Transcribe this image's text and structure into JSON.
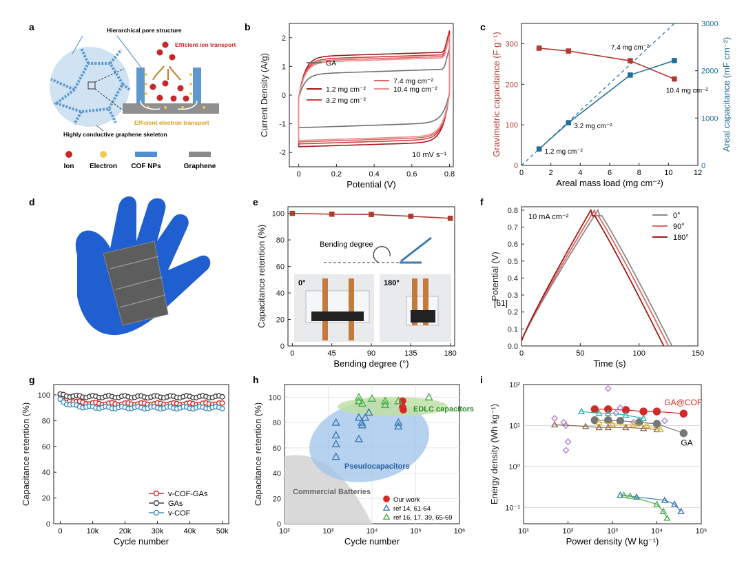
{
  "panels": {
    "a": {
      "letter": "a",
      "pore_label": "Hierarchical pore structure",
      "ion_transport_label": "Efficient ion transport",
      "electron_transport_label": "Efficient electron transport",
      "skeleton_label": "Highly conductive graphene skeleton",
      "legend": [
        {
          "label": "Ion",
          "color": "#c62828"
        },
        {
          "label": "Electron",
          "color": "#f2c94c"
        },
        {
          "label": "COF NPs",
          "color": "#4f8fcf"
        },
        {
          "label": "Graphene",
          "color": "#8a8a8a"
        }
      ]
    },
    "d": {
      "letter": "d"
    },
    "e": {
      "letter": "e",
      "bending_label": "Bending degree",
      "photo_left_label": "0°",
      "photo_right_label": "180°"
    },
    "f": {
      "letter": "f",
      "annotation": "10 mA cm⁻²",
      "side_label": "[61]"
    },
    "h": {
      "letter": "h",
      "region_batteries": "Commercial Batteries",
      "region_pseudo": "Pseudocapacitors",
      "region_edlc": "EDLC capacitors"
    },
    "i": {
      "letter": "i",
      "label_gacof": "GA@COF",
      "label_ga": "GA"
    }
  },
  "chart_data": [
    {
      "id": "b",
      "letter": "b",
      "type": "line",
      "xlabel": "Potential (V)",
      "ylabel": "Current Density (A/g)",
      "xlim": [
        -0.05,
        0.82
      ],
      "ylim": [
        -2.5,
        2.5
      ],
      "xticks": [
        0.0,
        0.2,
        0.4,
        0.6,
        0.8
      ],
      "yticks": [
        -2,
        -1,
        0,
        1,
        2
      ],
      "annotation": "10 mV s⁻¹",
      "series": [
        {
          "name": "GA",
          "color": "#707070",
          "upper": 0.82,
          "lower": -1.05,
          "slope": 0.55
        },
        {
          "name": "1.2 mg cm⁻²",
          "color": "#a01818",
          "upper": 1.42,
          "lower": -1.72,
          "slope": 0.5
        },
        {
          "name": "3.2 mg cm⁻²",
          "color": "#d63a3a",
          "upper": 1.33,
          "lower": -1.62,
          "slope": 0.52
        },
        {
          "name": "7.4 mg cm⁻²",
          "color": "#e06565",
          "upper": 1.27,
          "lower": -1.55,
          "slope": 0.52
        },
        {
          "name": "10.4 mg cm⁻²",
          "color": "#ea8f8f",
          "upper": 1.22,
          "lower": -1.5,
          "slope": 0.53
        }
      ]
    },
    {
      "id": "c",
      "letter": "c",
      "type": "line",
      "xlabel": "Areal mass load (mg cm⁻²)",
      "ylabel": "Gravimetric capacitance (F g⁻¹)",
      "ylabel_right": "Areal capacitance (mF cm⁻²)",
      "xlim": [
        0,
        12
      ],
      "ylim": [
        0,
        350
      ],
      "ylim_right": [
        0,
        3000
      ],
      "xticks": [
        0,
        2,
        4,
        6,
        8,
        10,
        12
      ],
      "yticks": [
        0,
        100,
        200,
        300
      ],
      "yticks_right": [
        0,
        1000,
        2000,
        3000
      ],
      "x": [
        1.2,
        3.2,
        7.4,
        10.4
      ],
      "gravimetric": [
        289,
        282,
        258,
        213
      ],
      "areal": [
        347,
        902,
        1909,
        2215
      ],
      "point_labels": [
        "1.2 mg cm⁻²",
        "3.2 mg cm⁻²",
        "7.4 mg cm⁻²",
        "10.4 mg cm⁻²"
      ],
      "colors": {
        "gravimetric": "#b03a2e",
        "areal": "#1f6f9a"
      }
    },
    {
      "id": "e",
      "letter": "e",
      "type": "line",
      "xlabel": "Bending degree (°)",
      "ylabel": "Capacitance retention (%)",
      "xlim": [
        -5,
        185
      ],
      "ylim": [
        0,
        105
      ],
      "xticks": [
        0,
        45,
        90,
        135,
        180
      ],
      "yticks": [
        0,
        20,
        40,
        60,
        80,
        100
      ],
      "x": [
        0,
        45,
        90,
        135,
        180
      ],
      "values": [
        100,
        99.4,
        99.2,
        97.8,
        96.3
      ],
      "color": "#b03a2e"
    },
    {
      "id": "f",
      "letter": "f",
      "type": "line",
      "xlabel": "Time (s)",
      "ylabel": "Potential (V)",
      "xlim": [
        0,
        150
      ],
      "ylim": [
        0,
        0.82
      ],
      "xticks": [
        0,
        50,
        100,
        150
      ],
      "yticks": [
        0.0,
        0.1,
        0.2,
        0.3,
        0.4,
        0.5,
        0.6,
        0.7,
        0.8
      ],
      "series": [
        {
          "name": "0°",
          "color": "#8a8a8a",
          "peak": 65,
          "end": 128
        },
        {
          "name": "90°",
          "color": "#e06565",
          "peak": 62,
          "end": 125
        },
        {
          "name": "180°",
          "color": "#a01818",
          "peak": 59,
          "end": 121
        }
      ]
    },
    {
      "id": "g",
      "letter": "g",
      "type": "scatter",
      "xlabel": "Cycle number",
      "ylabel": "Capacitance retention (%)",
      "xlim": [
        -2000,
        52000
      ],
      "ylim": [
        0,
        108
      ],
      "xticks": [
        0,
        10000,
        20000,
        30000,
        40000,
        50000
      ],
      "xticklabels": [
        "0",
        "10k",
        "20k",
        "30k",
        "40k",
        "50k"
      ],
      "yticks": [
        0,
        20,
        40,
        60,
        80,
        100
      ],
      "series": [
        {
          "name": "v-COF-GAs",
          "color": "#d62828",
          "start": 100,
          "plateau": 93
        },
        {
          "name": "GAs",
          "color": "#444444",
          "start": 100,
          "plateau": 98.5
        },
        {
          "name": "v-COF",
          "color": "#3b8fc2",
          "start": 96,
          "plateau": 90
        }
      ]
    },
    {
      "id": "h",
      "letter": "h",
      "type": "scatter",
      "xlabel": "Cycle number",
      "ylabel": "Capacitance retention (%)",
      "xscale": "log",
      "xlim": [
        100,
        1000000
      ],
      "ylim": [
        0,
        110
      ],
      "xticks": [
        100,
        1000,
        10000,
        100000,
        1000000
      ],
      "xticklabels": [
        "10²",
        "10³",
        "10⁴",
        "10⁵",
        "10⁶"
      ],
      "yticks": [
        0,
        20,
        40,
        60,
        80,
        100
      ],
      "series": [
        {
          "name": "Our work",
          "color": "#d62828",
          "marker": "circle",
          "points": [
            [
              50000,
              97
            ],
            [
              50000,
              92
            ],
            [
              52000,
              90
            ]
          ]
        },
        {
          "name": "ref 14, 61-64",
          "color": "#3b78b5",
          "marker": "triangle",
          "points": [
            [
              1500,
              80
            ],
            [
              1500,
              70
            ],
            [
              1500,
              63
            ],
            [
              1500,
              53
            ],
            [
              5000,
              84
            ],
            [
              5000,
              67
            ],
            [
              5800,
              80
            ],
            [
              6000,
              78
            ],
            [
              7000,
              84
            ],
            [
              8500,
              88
            ],
            [
              40000,
              77
            ],
            [
              40000,
              80
            ]
          ]
        },
        {
          "name": "ref 16, 17, 39, 65-69",
          "color": "#4cae4c",
          "marker": "triangle",
          "points": [
            [
              5000,
              100
            ],
            [
              5000,
              97
            ],
            [
              10000,
              99
            ],
            [
              20000,
              97
            ],
            [
              20000,
              94
            ],
            [
              40000,
              97
            ],
            [
              200000,
              100
            ],
            [
              6000,
              95
            ]
          ]
        }
      ]
    },
    {
      "id": "i",
      "letter": "i",
      "type": "scatter",
      "xlabel": "Power density (W kg⁻¹)",
      "ylabel": "Energy density (Wh kg⁻¹)",
      "xscale": "log",
      "yscale": "log",
      "xlim": [
        10,
        100000
      ],
      "ylim": [
        0.04,
        100
      ],
      "xticks": [
        10,
        100,
        1000,
        10000,
        100000
      ],
      "xticklabels": [
        "10¹",
        "10²",
        "10³",
        "10⁴",
        "10⁵"
      ],
      "yticks": [
        0.1,
        1,
        10,
        100
      ],
      "yticklabels": [
        "10⁻¹",
        "10⁰",
        "10¹",
        "10²"
      ],
      "series": [
        {
          "name": "GA@COF",
          "color": "#d62828",
          "marker": "circle",
          "line": true,
          "points": [
            [
              400,
              25
            ],
            [
              800,
              25
            ],
            [
              2000,
              24
            ],
            [
              5000,
              22
            ],
            [
              10000,
              22
            ],
            [
              40000,
              19.5
            ]
          ]
        },
        {
          "name": "GA",
          "color": "#777777",
          "marker": "circle",
          "line": true,
          "points": [
            [
              400,
              13.5
            ],
            [
              800,
              13.5
            ],
            [
              1500,
              13
            ],
            [
              4000,
              12
            ],
            [
              10000,
              11
            ],
            [
              40000,
              6.5
            ]
          ]
        },
        {
          "name": "purple",
          "color": "#b27fd6",
          "marker": "diamond",
          "line": false,
          "points": [
            [
              50,
              15
            ],
            [
              80,
              12
            ],
            [
              90,
              10
            ],
            [
              100,
              4
            ],
            [
              90,
              2.5
            ],
            [
              800,
              80
            ],
            [
              1200,
              20
            ],
            [
              1500,
              27
            ],
            [
              3000,
              12
            ],
            [
              15000,
              13
            ]
          ]
        },
        {
          "name": "brown",
          "color": "#8a6a4a",
          "marker": "triangle",
          "line": true,
          "points": [
            [
              50,
              10.5
            ],
            [
              250,
              9.5
            ],
            [
              500,
              9
            ],
            [
              800,
              9
            ],
            [
              2000,
              9
            ],
            [
              5000,
              8.5
            ],
            [
              10000,
              8
            ]
          ]
        },
        {
          "name": "teal",
          "color": "#39b0b0",
          "marker": "triangle",
          "line": true,
          "points": [
            [
              200,
              22
            ],
            [
              500,
              20
            ],
            [
              800,
              20
            ],
            [
              2000,
              18
            ],
            [
              5000,
              15
            ]
          ]
        },
        {
          "name": "yellow",
          "color": "#d9b338",
          "marker": "triangle",
          "line": true,
          "points": [
            [
              500,
              12
            ],
            [
              1000,
              11
            ],
            [
              3000,
              10.5
            ],
            [
              6000,
              10
            ],
            [
              12000,
              8
            ]
          ]
        },
        {
          "name": "low-blue",
          "color": "#3b78b5",
          "marker": "triangle",
          "line": true,
          "points": [
            [
              1500,
              0.2
            ],
            [
              3500,
              0.18
            ],
            [
              15000,
              0.15
            ],
            [
              25000,
              0.12
            ],
            [
              35000,
              0.08
            ]
          ]
        },
        {
          "name": "low-green",
          "color": "#4cae4c",
          "marker": "triangle",
          "line": true,
          "points": [
            [
              1800,
              0.2
            ],
            [
              2500,
              0.19
            ],
            [
              10000,
              0.12
            ],
            [
              14000,
              0.08
            ],
            [
              17000,
              0.055
            ]
          ]
        }
      ]
    }
  ]
}
